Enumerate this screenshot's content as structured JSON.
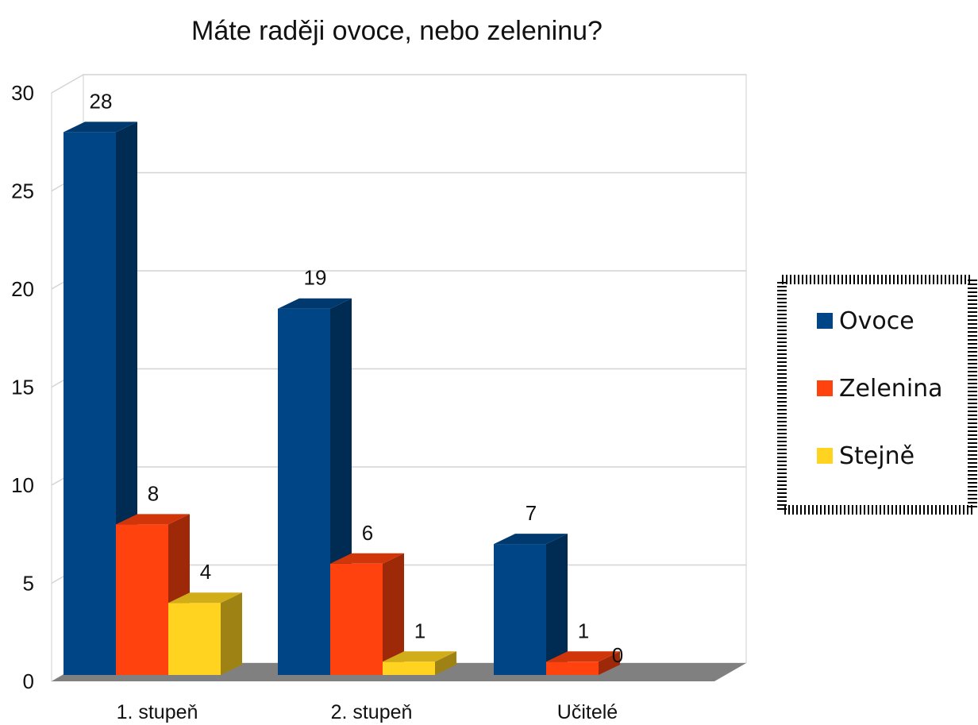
{
  "chart_data": {
    "type": "bar",
    "title": "Máte raději ovoce, nebo zeleninu?",
    "categories": [
      "1. stupeň",
      "2. stupeň",
      "Učitelé"
    ],
    "series": [
      {
        "name": "Ovoce",
        "values": [
          28,
          19,
          7
        ],
        "color": "#004586"
      },
      {
        "name": "Zelenina",
        "values": [
          8,
          6,
          1
        ],
        "color": "#ff420e"
      },
      {
        "name": "Stejně",
        "values": [
          4,
          1,
          0
        ],
        "color": "#ffd320"
      }
    ],
    "y_ticks": [
      "0",
      "5",
      "10",
      "15",
      "20",
      "25",
      "30"
    ],
    "ylim": [
      0,
      30
    ],
    "xlabel": "",
    "ylabel": "",
    "grid": true,
    "legend_position": "right",
    "data_labels": true,
    "style": "3d"
  }
}
